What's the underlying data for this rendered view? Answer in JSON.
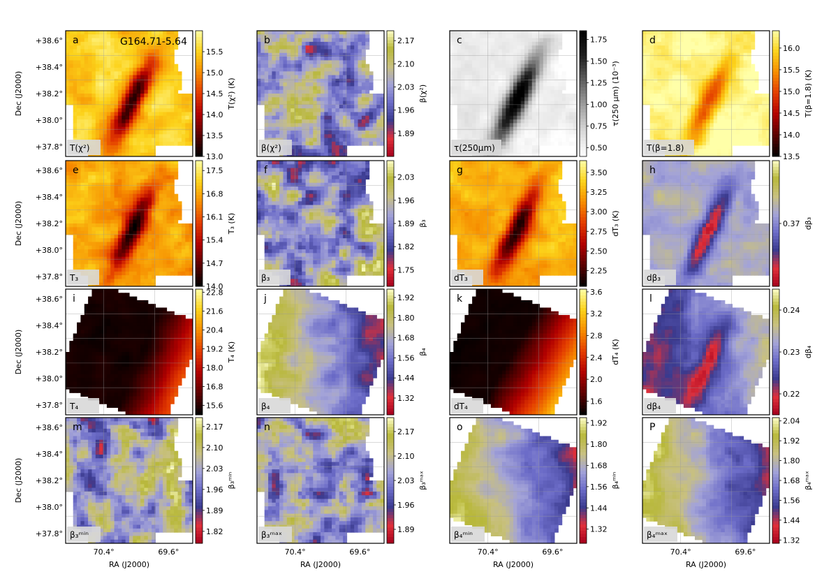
{
  "figure": {
    "title": "G164.71-5.64",
    "xlabel": "RA (J2000)",
    "ylabel": "Dec (J2000)",
    "xticks": [
      "70.4°",
      "69.6°"
    ],
    "yticks": [
      "+38.6°",
      "+38.4°",
      "+38.2°",
      "+38.0°",
      "+37.8°"
    ]
  },
  "chart_data": [
    {
      "type": "heatmap",
      "letter": "a",
      "label": "T(χ²)",
      "cbar_label": "T(χ²) (K)",
      "cmap": "hot",
      "cbar_ticks": [
        "13.0",
        "13.5",
        "14.0",
        "14.5",
        "15.0",
        "15.5"
      ],
      "clim": [
        13.0,
        16.0
      ],
      "footprint": "irregular"
    },
    {
      "type": "heatmap",
      "letter": "b",
      "label": "β(χ²)",
      "cbar_label": "β(χ²)",
      "cmap": "blue-yellow",
      "cbar_ticks": [
        "1.89",
        "1.96",
        "2.03",
        "2.10",
        "2.17"
      ],
      "clim": [
        1.82,
        2.2
      ],
      "footprint": "irregular"
    },
    {
      "type": "heatmap",
      "letter": "c",
      "label": "τ(250μm)",
      "cbar_label": "τ(250 μm) (10⁻³)",
      "cmap": "gray",
      "cbar_ticks": [
        "0.50",
        "0.75",
        "1.00",
        "1.25",
        "1.50",
        "1.75"
      ],
      "clim": [
        0.4,
        1.85
      ],
      "footprint": "irregular"
    },
    {
      "type": "heatmap",
      "letter": "d",
      "label": "T(β=1.8)",
      "cbar_label": "T(β=1.8) (K)",
      "cmap": "hot",
      "cbar_ticks": [
        "13.5",
        "14.0",
        "14.5",
        "15.0",
        "15.5",
        "16.0"
      ],
      "clim": [
        13.5,
        16.4
      ],
      "footprint": "irregular"
    },
    {
      "type": "heatmap",
      "letter": "e",
      "label": "T₃",
      "cbar_label": "T₃ (K)",
      "cmap": "hot",
      "cbar_ticks": [
        "14.0",
        "14.7",
        "15.4",
        "16.1",
        "16.8",
        "17.5"
      ],
      "clim": [
        14.0,
        17.8
      ],
      "footprint": "irregular"
    },
    {
      "type": "heatmap",
      "letter": "f",
      "label": "β₃",
      "cbar_label": "β₃",
      "cmap": "blue-yellow",
      "cbar_ticks": [
        "1.75",
        "1.82",
        "1.89",
        "1.96",
        "2.03"
      ],
      "clim": [
        1.7,
        2.08
      ],
      "footprint": "irregular"
    },
    {
      "type": "heatmap",
      "letter": "g",
      "label": "dT₃",
      "cbar_label": "dT₃ (K)",
      "cmap": "hot",
      "cbar_ticks": [
        "2.25",
        "2.50",
        "2.75",
        "3.00",
        "3.25",
        "3.50"
      ],
      "clim": [
        2.05,
        3.65
      ],
      "footprint": "irregular"
    },
    {
      "type": "heatmap",
      "letter": "h",
      "label": "dβ₃",
      "cbar_label": "dβ₃",
      "cmap": "blue-yellow",
      "cbar_ticks": [
        "0.37"
      ],
      "clim": [
        0.3,
        0.44
      ],
      "footprint": "irregular"
    },
    {
      "type": "heatmap",
      "letter": "i",
      "label": "T₄",
      "cbar_label": "T₄ (K)",
      "cmap": "hot",
      "cbar_ticks": [
        "15.6",
        "16.8",
        "18.0",
        "19.2",
        "20.4",
        "21.6",
        "22.8"
      ],
      "clim": [
        15.0,
        23.0
      ],
      "footprint": "tilted-square"
    },
    {
      "type": "heatmap",
      "letter": "j",
      "label": "β₄",
      "cbar_label": "β₄",
      "cmap": "blue-yellow",
      "cbar_ticks": [
        "1.32",
        "1.44",
        "1.56",
        "1.68",
        "1.80",
        "1.92"
      ],
      "clim": [
        1.22,
        1.97
      ],
      "footprint": "tilted-square"
    },
    {
      "type": "heatmap",
      "letter": "k",
      "label": "dT₄",
      "cbar_label": "dT₄ (K)",
      "cmap": "hot",
      "cbar_ticks": [
        "1.6",
        "2.0",
        "2.4",
        "2.8",
        "3.2",
        "3.6"
      ],
      "clim": [
        1.35,
        3.65
      ],
      "footprint": "tilted-square"
    },
    {
      "type": "heatmap",
      "letter": "l",
      "label": "dβ₄",
      "cbar_label": "dβ₄",
      "cmap": "blue-yellow",
      "cbar_ticks": [
        "0.22",
        "0.23",
        "0.24"
      ],
      "clim": [
        0.215,
        0.245
      ],
      "footprint": "tilted-square"
    },
    {
      "type": "heatmap",
      "letter": "m",
      "label": "β₃ᵐⁱⁿ",
      "cbar_label": "β₃ᵐⁱⁿ",
      "cmap": "blue-yellow",
      "cbar_ticks": [
        "1.82",
        "1.89",
        "1.96",
        "2.03",
        "2.10",
        "2.17"
      ],
      "clim": [
        1.78,
        2.2
      ],
      "footprint": "irregular"
    },
    {
      "type": "heatmap",
      "letter": "n",
      "label": "β₃ᵐᵃˣ",
      "cbar_label": "β₃ᵐᵃˣ",
      "cmap": "blue-yellow",
      "cbar_ticks": [
        "1.89",
        "1.96",
        "2.03",
        "2.10",
        "2.17"
      ],
      "clim": [
        1.85,
        2.21
      ],
      "footprint": "irregular"
    },
    {
      "type": "heatmap",
      "letter": "o",
      "label": "β₄ᵐⁱⁿ",
      "cbar_label": "β₄ᵐⁱⁿ",
      "cmap": "blue-yellow",
      "cbar_ticks": [
        "1.32",
        "1.44",
        "1.56",
        "1.68",
        "1.80",
        "1.92"
      ],
      "clim": [
        1.24,
        1.95
      ],
      "footprint": "tilted-square"
    },
    {
      "type": "heatmap",
      "letter": "P",
      "label": "β₄ᵐᵃˣ",
      "cbar_label": "β₄ᵐᵃˣ",
      "cmap": "blue-yellow",
      "cbar_ticks": [
        "1.32",
        "1.44",
        "1.56",
        "1.68",
        "1.80",
        "1.92",
        "2.04"
      ],
      "clim": [
        1.3,
        2.06
      ],
      "footprint": "tilted-square"
    }
  ]
}
